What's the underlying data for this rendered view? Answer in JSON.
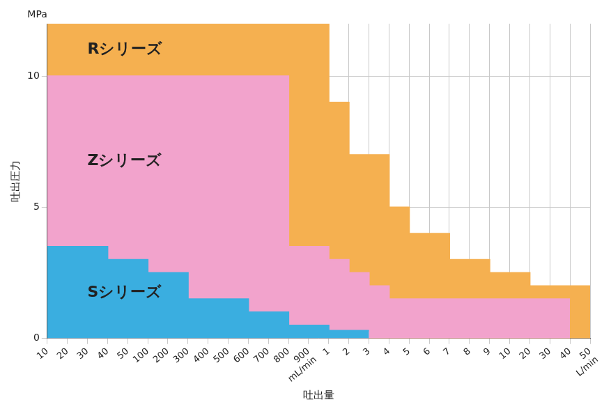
{
  "chart_data": {
    "type": "line",
    "xlabel": "吐出量",
    "ylabel": "吐出圧力",
    "y_unit": "MPa",
    "x_units": [
      {
        "text": "mL/min",
        "after": "900"
      },
      {
        "text": "L/min",
        "after": "50"
      }
    ],
    "categories": [
      "10",
      "20",
      "30",
      "40",
      "50",
      "100",
      "200",
      "300",
      "400",
      "500",
      "600",
      "700",
      "800",
      "900",
      "1",
      "2",
      "3",
      "4",
      "5",
      "6",
      "7",
      "8",
      "9",
      "10",
      "20",
      "30",
      "40",
      "50"
    ],
    "series": [
      {
        "name": "Rシリーズ",
        "color": "#f5b050",
        "values": [
          12,
          12,
          12,
          12,
          12,
          12,
          12,
          12,
          12,
          12,
          12,
          12,
          12,
          12,
          12,
          9,
          7,
          7,
          5,
          4,
          4,
          3,
          3,
          2.5,
          2.5,
          2,
          2,
          2
        ]
      },
      {
        "name": "Zシリーズ",
        "color": "#f2a3cc",
        "values": [
          10,
          10,
          10,
          10,
          10,
          10,
          10,
          10,
          10,
          10,
          10,
          10,
          10,
          3.5,
          3.5,
          3,
          2.5,
          2,
          1.5,
          1.5,
          1.5,
          1.5,
          1.5,
          1.5,
          1.5,
          1.5,
          1.5,
          null
        ]
      },
      {
        "name": "Sシリーズ",
        "color": "#3aaee0",
        "values": [
          3.5,
          3.5,
          3.5,
          3.5,
          3,
          3,
          2.5,
          2.5,
          1.5,
          1.5,
          1.5,
          1,
          1,
          0.5,
          0.5,
          0.3,
          0.3,
          null,
          null,
          null,
          null,
          null,
          null,
          null,
          null,
          null,
          null,
          null
        ]
      }
    ],
    "stacked": false,
    "ylim": [
      0,
      12
    ],
    "yticks": [
      0,
      5,
      10
    ],
    "grid": true
  }
}
